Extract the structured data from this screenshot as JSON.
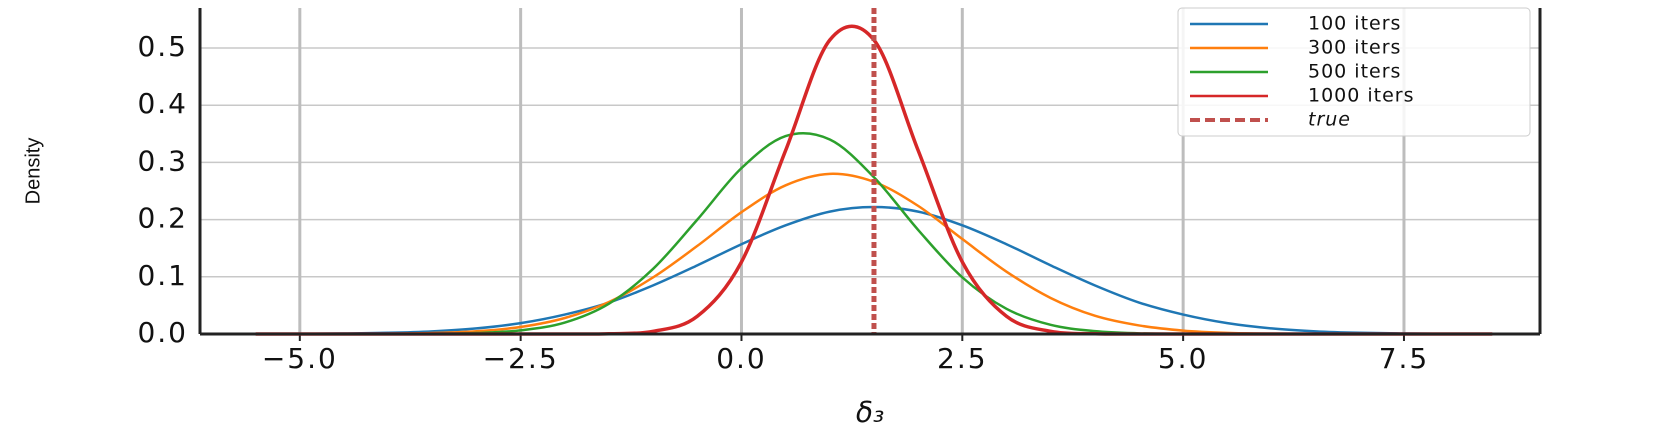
{
  "chart_data": {
    "type": "line",
    "x": [
      -5.5,
      -5,
      -4.5,
      -4,
      -3.5,
      -3,
      -2.5,
      -2,
      -1.5,
      -1,
      -0.5,
      0,
      0.5,
      1,
      1.5,
      2,
      2.5,
      3,
      3.5,
      4,
      4.5,
      5,
      5.5,
      6,
      6.5,
      7,
      7.5,
      8,
      8.5
    ],
    "series": [
      {
        "name": "100 iters",
        "color": "#1f77b4",
        "values": [
          0.0001,
          0.0003,
          0.0009,
          0.0021,
          0.0047,
          0.0098,
          0.019,
          0.034,
          0.055,
          0.085,
          0.12,
          0.157,
          0.19,
          0.214,
          0.222,
          0.214,
          0.19,
          0.157,
          0.12,
          0.085,
          0.055,
          0.034,
          0.019,
          0.0098,
          0.0047,
          0.0021,
          0.0009,
          0.0003,
          0.0001
        ]
      },
      {
        "name": "300 iters",
        "color": "#ff7f0e",
        "values": [
          0,
          0,
          0.0001,
          0.0005,
          0.0017,
          0.0048,
          0.0123,
          0.028,
          0.056,
          0.099,
          0.154,
          0.213,
          0.26,
          0.28,
          0.266,
          0.224,
          0.166,
          0.109,
          0.063,
          0.032,
          0.015,
          0.006,
          0.002,
          0.0006,
          0.0002,
          0.0001,
          0,
          0,
          0
        ]
      },
      {
        "name": "500 iters",
        "color": "#2ca02c",
        "values": [
          0,
          0,
          0,
          0,
          0.0004,
          0.0017,
          0.0064,
          0.02,
          0.053,
          0.114,
          0.2,
          0.29,
          0.346,
          0.34,
          0.274,
          0.182,
          0.099,
          0.044,
          0.016,
          0.005,
          0.0012,
          0.0003,
          0,
          0,
          0,
          0,
          0,
          0,
          0
        ]
      },
      {
        "name": "1000 iters",
        "color": "#d62728",
        "values": [
          0,
          0,
          0,
          0,
          0,
          0,
          0,
          0,
          0.0004,
          0.0047,
          0.031,
          0.126,
          0.321,
          0.514,
          0.514,
          0.321,
          0.126,
          0.031,
          0.0047,
          0.0004,
          0,
          0,
          0,
          0,
          0,
          0,
          0,
          0,
          0
        ]
      }
    ],
    "reference_line": {
      "name": "true",
      "x": 1.5,
      "color": "#c0504d"
    },
    "xlabel": "δ₃",
    "ylabel": "Density",
    "xlim": [
      -6.13,
      9.04
    ],
    "ylim": [
      0,
      0.57
    ],
    "xticks": [
      {
        "value": -5,
        "label": "−5.0"
      },
      {
        "value": -2.5,
        "label": "−2.5"
      },
      {
        "value": 0,
        "label": "0.0"
      },
      2.5,
      {
        "value": 5,
        "label": "5.0"
      },
      7.5
    ],
    "yticks": [
      {
        "value": 0,
        "label": "0.0"
      },
      0.1,
      0.2,
      0.3,
      0.4,
      0.5
    ],
    "grid": true,
    "legend": "upper right"
  }
}
